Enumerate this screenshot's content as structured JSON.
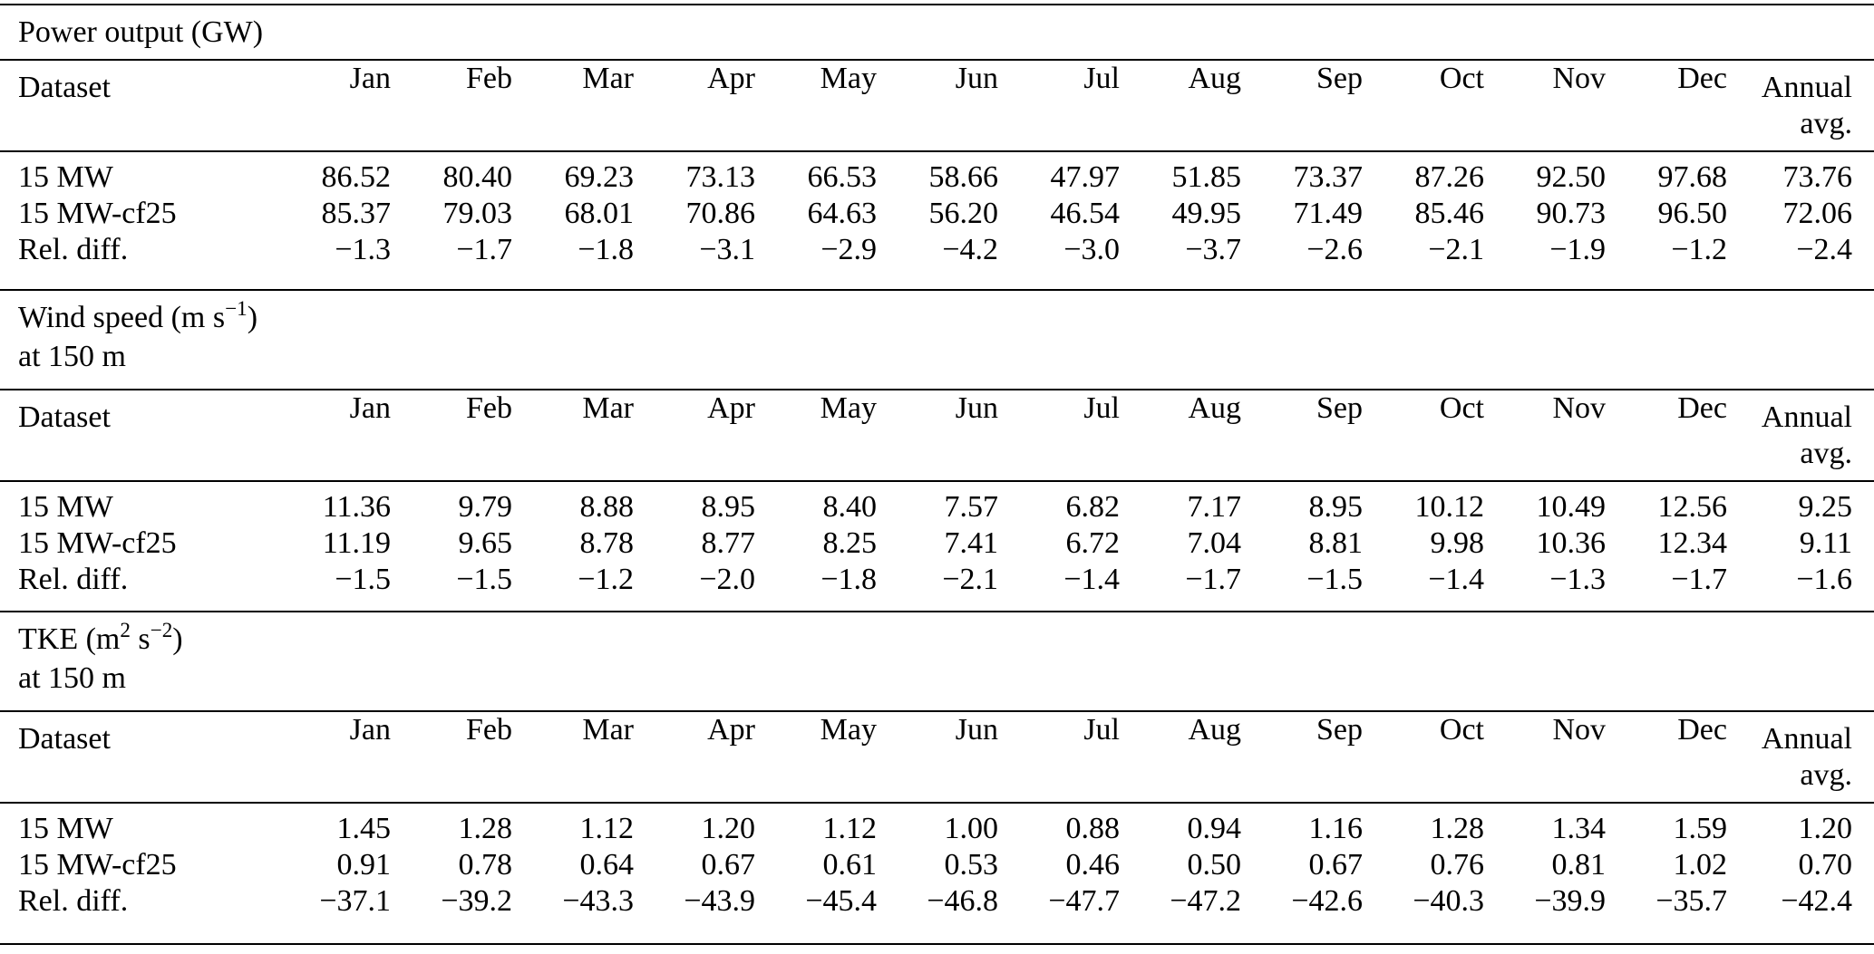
{
  "page": {
    "background": "#ffffff",
    "text_color": "#000000",
    "rule_color": "#000000"
  },
  "table": {
    "header": {
      "dataset_label": "Dataset",
      "months": [
        "Jan",
        "Feb",
        "Mar",
        "Apr",
        "May",
        "Jun",
        "Jul",
        "Aug",
        "Sep",
        "Oct",
        "Nov",
        "Dec"
      ],
      "annual_line1": "Annual",
      "annual_line2": "avg."
    },
    "sections": [
      {
        "id": "power-output",
        "title": {
          "segments": [
            {
              "text": "Power output (GW)",
              "sup": false
            }
          ],
          "line2": ""
        },
        "rows": [
          {
            "label": "15 MW",
            "values": [
              "86.52",
              "80.40",
              "69.23",
              "73.13",
              "66.53",
              "58.66",
              "47.97",
              "51.85",
              "73.37",
              "87.26",
              "92.50",
              "97.68",
              "73.76"
            ]
          },
          {
            "label": "15 MW-cf25",
            "values": [
              "85.37",
              "79.03",
              "68.01",
              "70.86",
              "64.63",
              "56.20",
              "46.54",
              "49.95",
              "71.49",
              "85.46",
              "90.73",
              "96.50",
              "72.06"
            ]
          },
          {
            "label": "Rel. diff.",
            "values": [
              "−1.3",
              "−1.7",
              "−1.8",
              "−3.1",
              "−2.9",
              "−4.2",
              "−3.0",
              "−3.7",
              "−2.6",
              "−2.1",
              "−1.9",
              "−1.2",
              "−2.4"
            ]
          }
        ]
      },
      {
        "id": "wind-speed",
        "title": {
          "segments": [
            {
              "text": "Wind speed (m s",
              "sup": false
            },
            {
              "text": "−1",
              "sup": true
            },
            {
              "text": ")",
              "sup": false
            }
          ],
          "line2": "at 150 m"
        },
        "rows": [
          {
            "label": "15 MW",
            "values": [
              "11.36",
              "9.79",
              "8.88",
              "8.95",
              "8.40",
              "7.57",
              "6.82",
              "7.17",
              "8.95",
              "10.12",
              "10.49",
              "12.56",
              "9.25"
            ]
          },
          {
            "label": "15 MW-cf25",
            "values": [
              "11.19",
              "9.65",
              "8.78",
              "8.77",
              "8.25",
              "7.41",
              "6.72",
              "7.04",
              "8.81",
              "9.98",
              "10.36",
              "12.34",
              "9.11"
            ]
          },
          {
            "label": "Rel. diff.",
            "values": [
              "−1.5",
              "−1.5",
              "−1.2",
              "−2.0",
              "−1.8",
              "−2.1",
              "−1.4",
              "−1.7",
              "−1.5",
              "−1.4",
              "−1.3",
              "−1.7",
              "−1.6"
            ]
          }
        ]
      },
      {
        "id": "tke",
        "title": {
          "segments": [
            {
              "text": "TKE (m",
              "sup": false
            },
            {
              "text": "2",
              "sup": true
            },
            {
              "text": " s",
              "sup": false
            },
            {
              "text": "−2",
              "sup": true
            },
            {
              "text": ")",
              "sup": false
            }
          ],
          "line2": "at 150 m"
        },
        "rows": [
          {
            "label": "15 MW",
            "values": [
              "1.45",
              "1.28",
              "1.12",
              "1.20",
              "1.12",
              "1.00",
              "0.88",
              "0.94",
              "1.16",
              "1.28",
              "1.34",
              "1.59",
              "1.20"
            ]
          },
          {
            "label": "15 MW-cf25",
            "values": [
              "0.91",
              "0.78",
              "0.64",
              "0.67",
              "0.61",
              "0.53",
              "0.46",
              "0.50",
              "0.67",
              "0.76",
              "0.81",
              "1.02",
              "0.70"
            ]
          },
          {
            "label": "Rel. diff.",
            "values": [
              "−37.1",
              "−39.2",
              "−43.3",
              "−43.9",
              "−45.4",
              "−46.8",
              "−47.7",
              "−47.2",
              "−42.6",
              "−40.3",
              "−39.9",
              "−35.7",
              "−42.4"
            ]
          }
        ]
      }
    ]
  }
}
